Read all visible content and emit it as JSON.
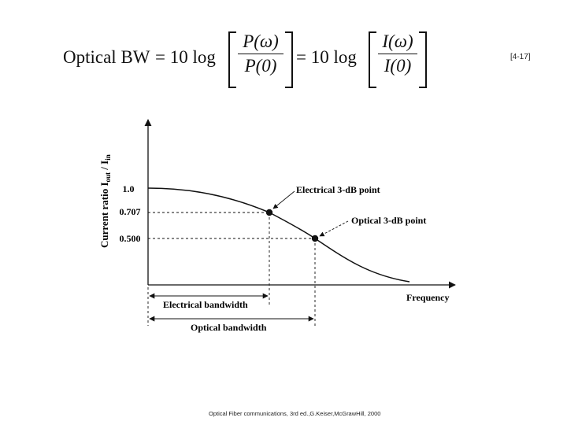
{
  "equation": {
    "lhs": "Optical BW",
    "eq1": "= 10 log",
    "frac1_num": "P(ω)",
    "frac1_den": "P(0)",
    "eq2": "= 10 log",
    "frac2_num": "I(ω)",
    "frac2_den": "I(0)"
  },
  "reference": "[4-17]",
  "diagram": {
    "y_axis_label": "Current ratio I",
    "y_axis_sub1": "out",
    "y_axis_mid": " / I",
    "y_axis_sub2": "in",
    "x_axis_label": "Frequency",
    "y_ticks": [
      "1.0",
      "0.707",
      "0.500"
    ],
    "electrical_point_label": "Electrical 3-dB point",
    "optical_point_label": "Optical 3-dB point",
    "electrical_bandwidth_label": "Electrical bandwidth",
    "optical_bandwidth_label": "Optical bandwidth"
  },
  "caption": "Optical Fiber communications, 3rd ed.,G.Keiser,McGrawHill, 2000"
}
